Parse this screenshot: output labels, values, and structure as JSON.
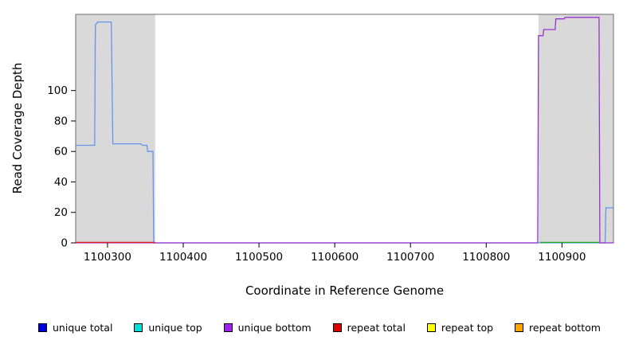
{
  "chart_data": {
    "type": "line",
    "title": "",
    "xlabel": "Coordinate in Reference Genome",
    "ylabel": "Read Coverage Depth",
    "xlim": [
      1100258,
      1100968
    ],
    "ylim": [
      0,
      150
    ],
    "xticks": [
      1100300,
      1100400,
      1100500,
      1100600,
      1100700,
      1100800,
      1100900
    ],
    "yticks": [
      0,
      20,
      40,
      60,
      80,
      100
    ],
    "grid": false,
    "frame_color": "#6e6e6e",
    "plot_bg": "#ffffff",
    "shaded_regions": [
      {
        "x0": 1100258,
        "x1": 1100363,
        "color": "#d9d9d9"
      },
      {
        "x0": 1100869,
        "x1": 1100968,
        "color": "#d9d9d9"
      }
    ],
    "series": [
      {
        "name": "unique total",
        "color": "#6495ed",
        "points": [
          [
            1100258,
            64
          ],
          [
            1100283,
            64
          ],
          [
            1100284,
            143
          ],
          [
            1100287,
            145
          ],
          [
            1100305,
            145
          ],
          [
            1100307,
            65
          ],
          [
            1100344,
            65
          ],
          [
            1100346,
            64
          ],
          [
            1100352,
            64
          ],
          [
            1100353,
            60
          ],
          [
            1100360,
            60
          ],
          [
            1100361,
            0
          ],
          [
            1100957,
            0
          ],
          [
            1100958,
            23
          ],
          [
            1100968,
            23
          ]
        ]
      },
      {
        "name": "unique bottom",
        "color": "#9932cc",
        "points": [
          [
            1100258,
            0
          ],
          [
            1100868,
            0
          ],
          [
            1100869,
            136
          ],
          [
            1100875,
            136
          ],
          [
            1100876,
            140
          ],
          [
            1100891,
            140
          ],
          [
            1100892,
            147
          ],
          [
            1100903,
            147
          ],
          [
            1100904,
            148
          ],
          [
            1100949,
            148
          ],
          [
            1100950,
            0
          ],
          [
            1100968,
            0
          ]
        ]
      }
    ],
    "baseline_segments": [
      {
        "color": "#e02020",
        "x0": 1100258,
        "x1": 1100363
      },
      {
        "color": "#22aa22",
        "x0": 1100871,
        "x1": 1100949
      }
    ],
    "legend_position": "bottom",
    "legend": [
      {
        "label": "unique total",
        "color": "#0000dd"
      },
      {
        "label": "unique top",
        "color": "#00dede"
      },
      {
        "label": "unique bottom",
        "color": "#a020f0"
      },
      {
        "label": "repeat total",
        "color": "#e00000"
      },
      {
        "label": "repeat top",
        "color": "#ffff00"
      },
      {
        "label": "repeat bottom",
        "color": "#ffa500"
      }
    ]
  }
}
